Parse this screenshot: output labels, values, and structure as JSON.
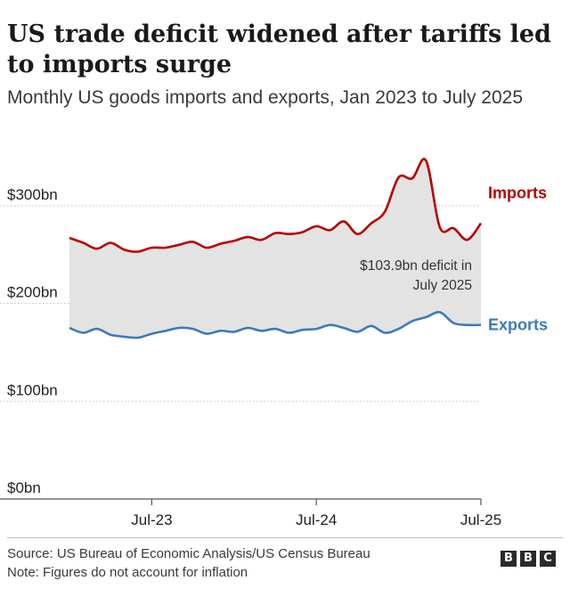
{
  "title": "US trade deficit widened after tariffs led to imports surge",
  "subtitle": "Monthly US goods imports and exports, Jan 2023 to July 2025",
  "footer": {
    "source": "Source: US Bureau of Economic Analysis/US Census Bureau",
    "note": "Note: Figures do not account for inflation",
    "logo_letters": [
      "B",
      "B",
      "C"
    ]
  },
  "chart_data": {
    "type": "line",
    "x": [
      "2023-01",
      "2023-02",
      "2023-03",
      "2023-04",
      "2023-05",
      "2023-06",
      "2023-07",
      "2023-08",
      "2023-09",
      "2023-10",
      "2023-11",
      "2023-12",
      "2024-01",
      "2024-02",
      "2024-03",
      "2024-04",
      "2024-05",
      "2024-06",
      "2024-07",
      "2024-08",
      "2024-09",
      "2024-10",
      "2024-11",
      "2024-12",
      "2025-01",
      "2025-02",
      "2025-03",
      "2025-04",
      "2025-05",
      "2025-06",
      "2025-07"
    ],
    "xtick_labels": [
      {
        "x": "2023-07",
        "label": "Jul-23"
      },
      {
        "x": "2024-07",
        "label": "Jul-24"
      },
      {
        "x": "2025-07",
        "label": "Jul-25"
      }
    ],
    "series": [
      {
        "name": "Imports",
        "color": "#b80000",
        "values": [
          267,
          262,
          256,
          262,
          255,
          253,
          257,
          257,
          260,
          263,
          257,
          261,
          264,
          268,
          265,
          272,
          271,
          273,
          279,
          275,
          284,
          271,
          282,
          294,
          329,
          328,
          346,
          278,
          277,
          265,
          282
        ]
      },
      {
        "name": "Exports",
        "color": "#3d7ab8",
        "values": [
          175,
          170,
          174,
          168,
          166,
          165,
          169,
          172,
          175,
          174,
          169,
          172,
          171,
          175,
          172,
          174,
          170,
          173,
          174,
          178,
          175,
          171,
          177,
          170,
          174,
          182,
          186,
          191,
          180,
          178,
          178
        ]
      }
    ],
    "yticks": [
      {
        "value": 0,
        "label": "$0bn"
      },
      {
        "value": 100,
        "label": "$100bn"
      },
      {
        "value": 200,
        "label": "$200bn"
      },
      {
        "value": 300,
        "label": "$300bn"
      }
    ],
    "ylim": [
      0,
      360
    ],
    "fill_between": {
      "color": "#e3e3e3"
    },
    "annotation": {
      "lines": [
        "$103.9bn deficit in",
        "July 2025"
      ]
    },
    "grid": "horizontal-dotted",
    "legend": "direct-labels-right"
  }
}
